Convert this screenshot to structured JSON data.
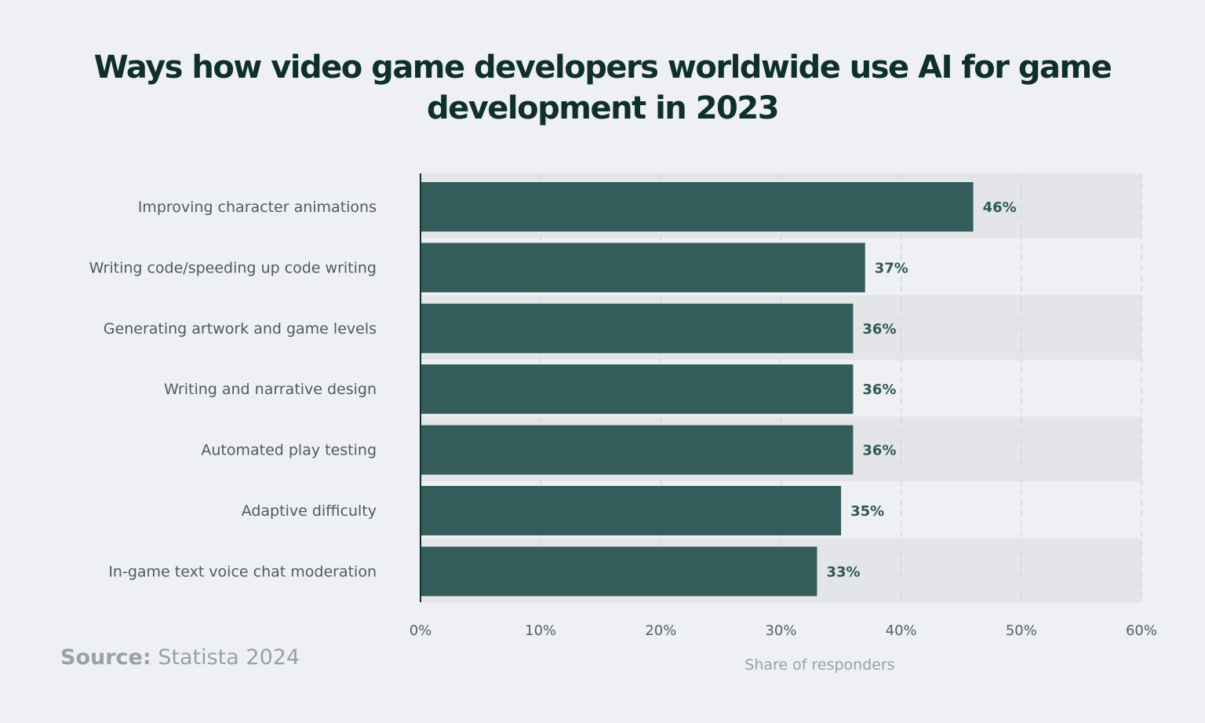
{
  "chart_data": {
    "type": "bar",
    "orientation": "horizontal",
    "title": "Ways how video game developers worldwide use AI for game development in 2023",
    "categories": [
      "Improving character animations",
      "Writing code/speeding up code writing",
      "Generating artwork and game levels",
      "Writing and narrative design",
      "Automated play testing",
      "Adaptive difficulty",
      "In-game text voice chat moderation"
    ],
    "values": [
      46,
      37,
      36,
      36,
      36,
      35,
      33
    ],
    "data_labels": [
      "46%",
      "37%",
      "36%",
      "36%",
      "36%",
      "35%",
      "33%"
    ],
    "xlabel": "Share of responders",
    "xlim": [
      0,
      60
    ],
    "xticks": [
      "0%",
      "10%",
      "20%",
      "30%",
      "40%",
      "50%",
      "60%"
    ],
    "grid": "vertical dashed",
    "bar_color": "#335c5b",
    "band_color": "#e3e5e9"
  },
  "source": {
    "label": "Source:",
    "text": "Statista 2024"
  }
}
